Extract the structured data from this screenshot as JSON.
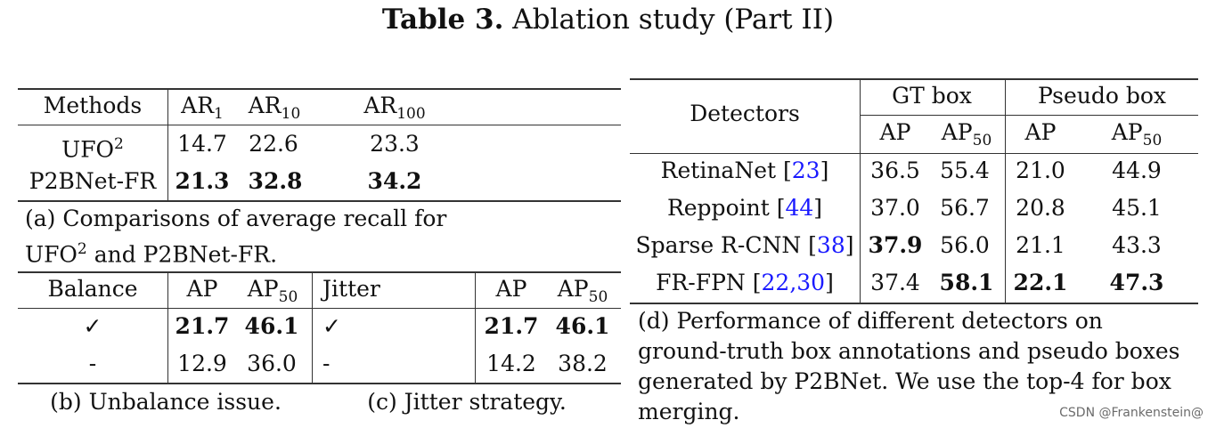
{
  "title": {
    "label": "Table 3.",
    "text": "Ablation study (Part II)"
  },
  "table_a": {
    "headers": {
      "methods": "Methods",
      "ar1": "AR",
      "ar1_sub": "1",
      "ar10": "AR",
      "ar10_sub": "10",
      "ar100": "AR",
      "ar100_sub": "100"
    },
    "rows": [
      {
        "method": "UFO",
        "sup": "2",
        "ar1": "14.7",
        "ar10": "22.6",
        "ar100": "23.3"
      },
      {
        "method": "P2BNet-FR",
        "sup": "",
        "ar1": "21.3",
        "ar10": "32.8",
        "ar100": "34.2"
      }
    ],
    "caption_line1": "(a) Comparisons of average recall for",
    "caption_line2_pre": "UFO",
    "caption_line2_sup": "2",
    "caption_line2_post": " and P2BNet-FR."
  },
  "table_b": {
    "headers": {
      "balance": "Balance",
      "ap": "AP",
      "ap50": "AP",
      "ap50_sub": "50"
    },
    "rows": [
      {
        "balance": "✓",
        "ap": "21.7",
        "ap50": "46.1"
      },
      {
        "balance": "-",
        "ap": "12.9",
        "ap50": "36.0"
      }
    ],
    "caption": "(b) Unbalance issue."
  },
  "table_c": {
    "headers": {
      "jitter": "Jitter",
      "ap": "AP",
      "ap50": "AP",
      "ap50_sub": "50"
    },
    "rows": [
      {
        "jitter": "✓",
        "ap": "21.7",
        "ap50": "46.1"
      },
      {
        "jitter": "-",
        "ap": "14.2",
        "ap50": "38.2"
      }
    ],
    "caption": "(c) Jitter strategy."
  },
  "table_d": {
    "headers": {
      "detectors": "Detectors",
      "gt_box": "GT box",
      "pseudo_box": "Pseudo box",
      "ap": "AP",
      "ap50": "AP",
      "ap50_sub": "50"
    },
    "rows": [
      {
        "name": "RetinaNet ",
        "ref_open": "[",
        "refs": "23",
        "ref_close": "]",
        "gt_ap": "36.5",
        "gt_ap50": "55.4",
        "ps_ap": "21.0",
        "ps_ap50": "44.9"
      },
      {
        "name": "Reppoint ",
        "ref_open": "[",
        "refs": "44",
        "ref_close": "]",
        "gt_ap": "37.0",
        "gt_ap50": "56.7",
        "ps_ap": "20.8",
        "ps_ap50": "45.1"
      },
      {
        "name": "Sparse R-CNN ",
        "ref_open": "[",
        "refs": "38",
        "ref_close": "]",
        "gt_ap": "37.9",
        "gt_ap50": "56.0",
        "ps_ap": "21.1",
        "ps_ap50": "43.3"
      },
      {
        "name": "FR-FPN ",
        "ref_open": "[",
        "refs": "22,30",
        "ref_close": "]",
        "gt_ap": "37.4",
        "gt_ap50": "58.1",
        "ps_ap": "22.1",
        "ps_ap50": "47.3"
      }
    ],
    "caption_lines": [
      "(d) Performance of different detectors on",
      "ground-truth box annotations and pseudo boxes",
      "generated by P2BNet. We use the top-4 for box",
      "merging."
    ]
  },
  "watermark": "CSDN @Frankenstein@"
}
